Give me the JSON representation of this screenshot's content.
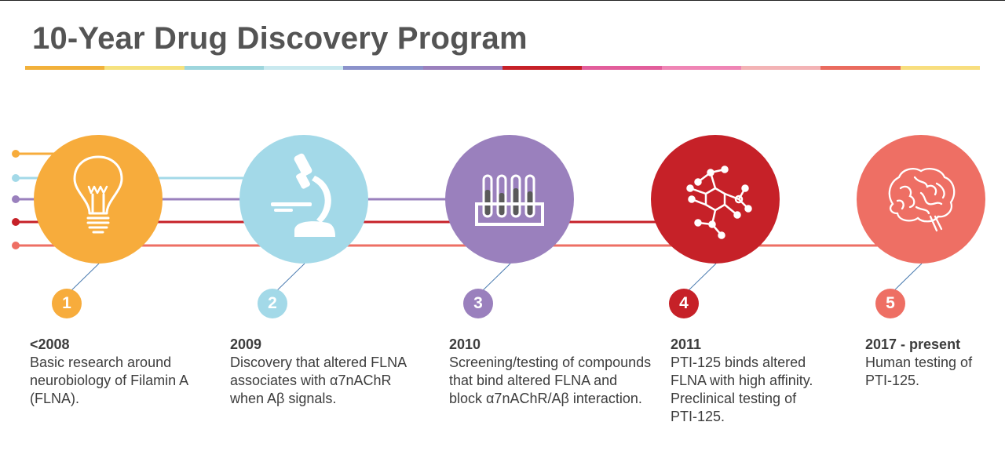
{
  "title": "10-Year Drug Discovery Program",
  "colors": {
    "orange": "#F7AC3C",
    "light_blue": "#A3D9E8",
    "purple": "#9A80BD",
    "red": "#C62128",
    "salmon": "#EE6F64",
    "bar_segments": [
      "#F2B13B",
      "#F6E27F",
      "#9ED6DD",
      "#C9E9EF",
      "#8B92CB",
      "#9A80BD",
      "#C62128",
      "#E25D9B",
      "#EF85B5",
      "#F3B3B5",
      "#EA6B5F",
      "#F8DE7E"
    ]
  },
  "steps": [
    {
      "number": "1",
      "year": "<2008",
      "lines": [
        "Basic research around",
        "neurobiology of Filamin A",
        "(FLNA)."
      ],
      "icon": "lightbulb-icon"
    },
    {
      "number": "2",
      "year": "2009",
      "lines": [
        "Discovery that altered FLNA",
        "associates with α7nAChR",
        "when Aβ signals."
      ],
      "icon": "microscope-icon"
    },
    {
      "number": "3",
      "year": "2010",
      "lines": [
        "Screening/testing of compounds",
        "that bind altered FLNA and",
        "block α7nAChR/Aβ interaction."
      ],
      "icon": "test-tubes-icon"
    },
    {
      "number": "4",
      "year": "2011",
      "lines": [
        "PTI-125 binds altered",
        "FLNA with high affinity.",
        "Preclinical testing of",
        "PTI-125."
      ],
      "icon": "molecule-icon"
    },
    {
      "number": "5",
      "year": "2017 - present",
      "lines": [
        "Human testing of",
        "PTI-125."
      ],
      "icon": "brain-icon"
    }
  ]
}
